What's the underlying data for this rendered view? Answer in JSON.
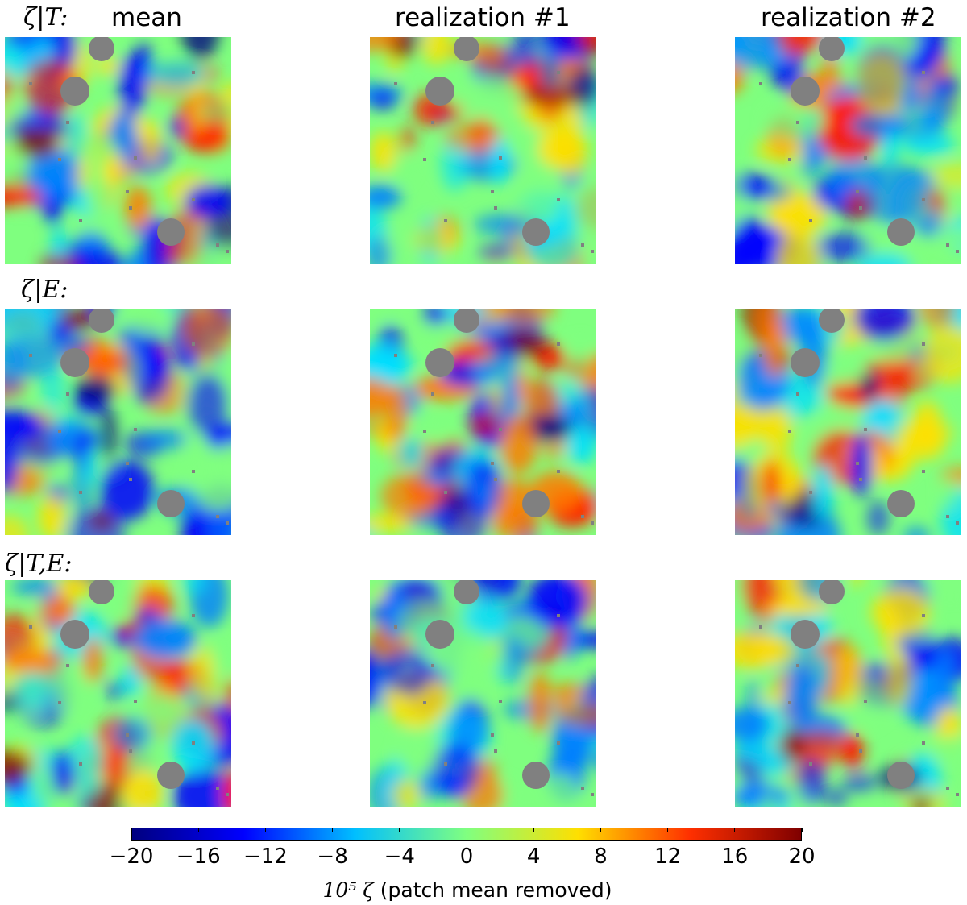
{
  "columns": [
    {
      "id": "mean",
      "title": "mean"
    },
    {
      "id": "r1",
      "title": "realization #1"
    },
    {
      "id": "r2",
      "title": "realization #2"
    }
  ],
  "rows": [
    {
      "id": "T",
      "label": "ζ|T:"
    },
    {
      "id": "E",
      "label": "ζ|E:"
    },
    {
      "id": "TE",
      "label": "ζ|T,E:"
    }
  ],
  "colorbar": {
    "min": -20,
    "max": 20,
    "tick_labels": [
      "−20",
      "−16",
      "−12",
      "−8",
      "−4",
      "0",
      "4",
      "8",
      "12",
      "16",
      "20"
    ],
    "label_math": "10⁵ ζ",
    "label_text": "(patch mean removed)",
    "colormap": "jet",
    "colormap_stops": [
      "#00007f",
      "#0000ff",
      "#00bfff",
      "#80ff80",
      "#ffdf00",
      "#ff3000",
      "#7f0000"
    ]
  },
  "mask_color": "#808080"
}
